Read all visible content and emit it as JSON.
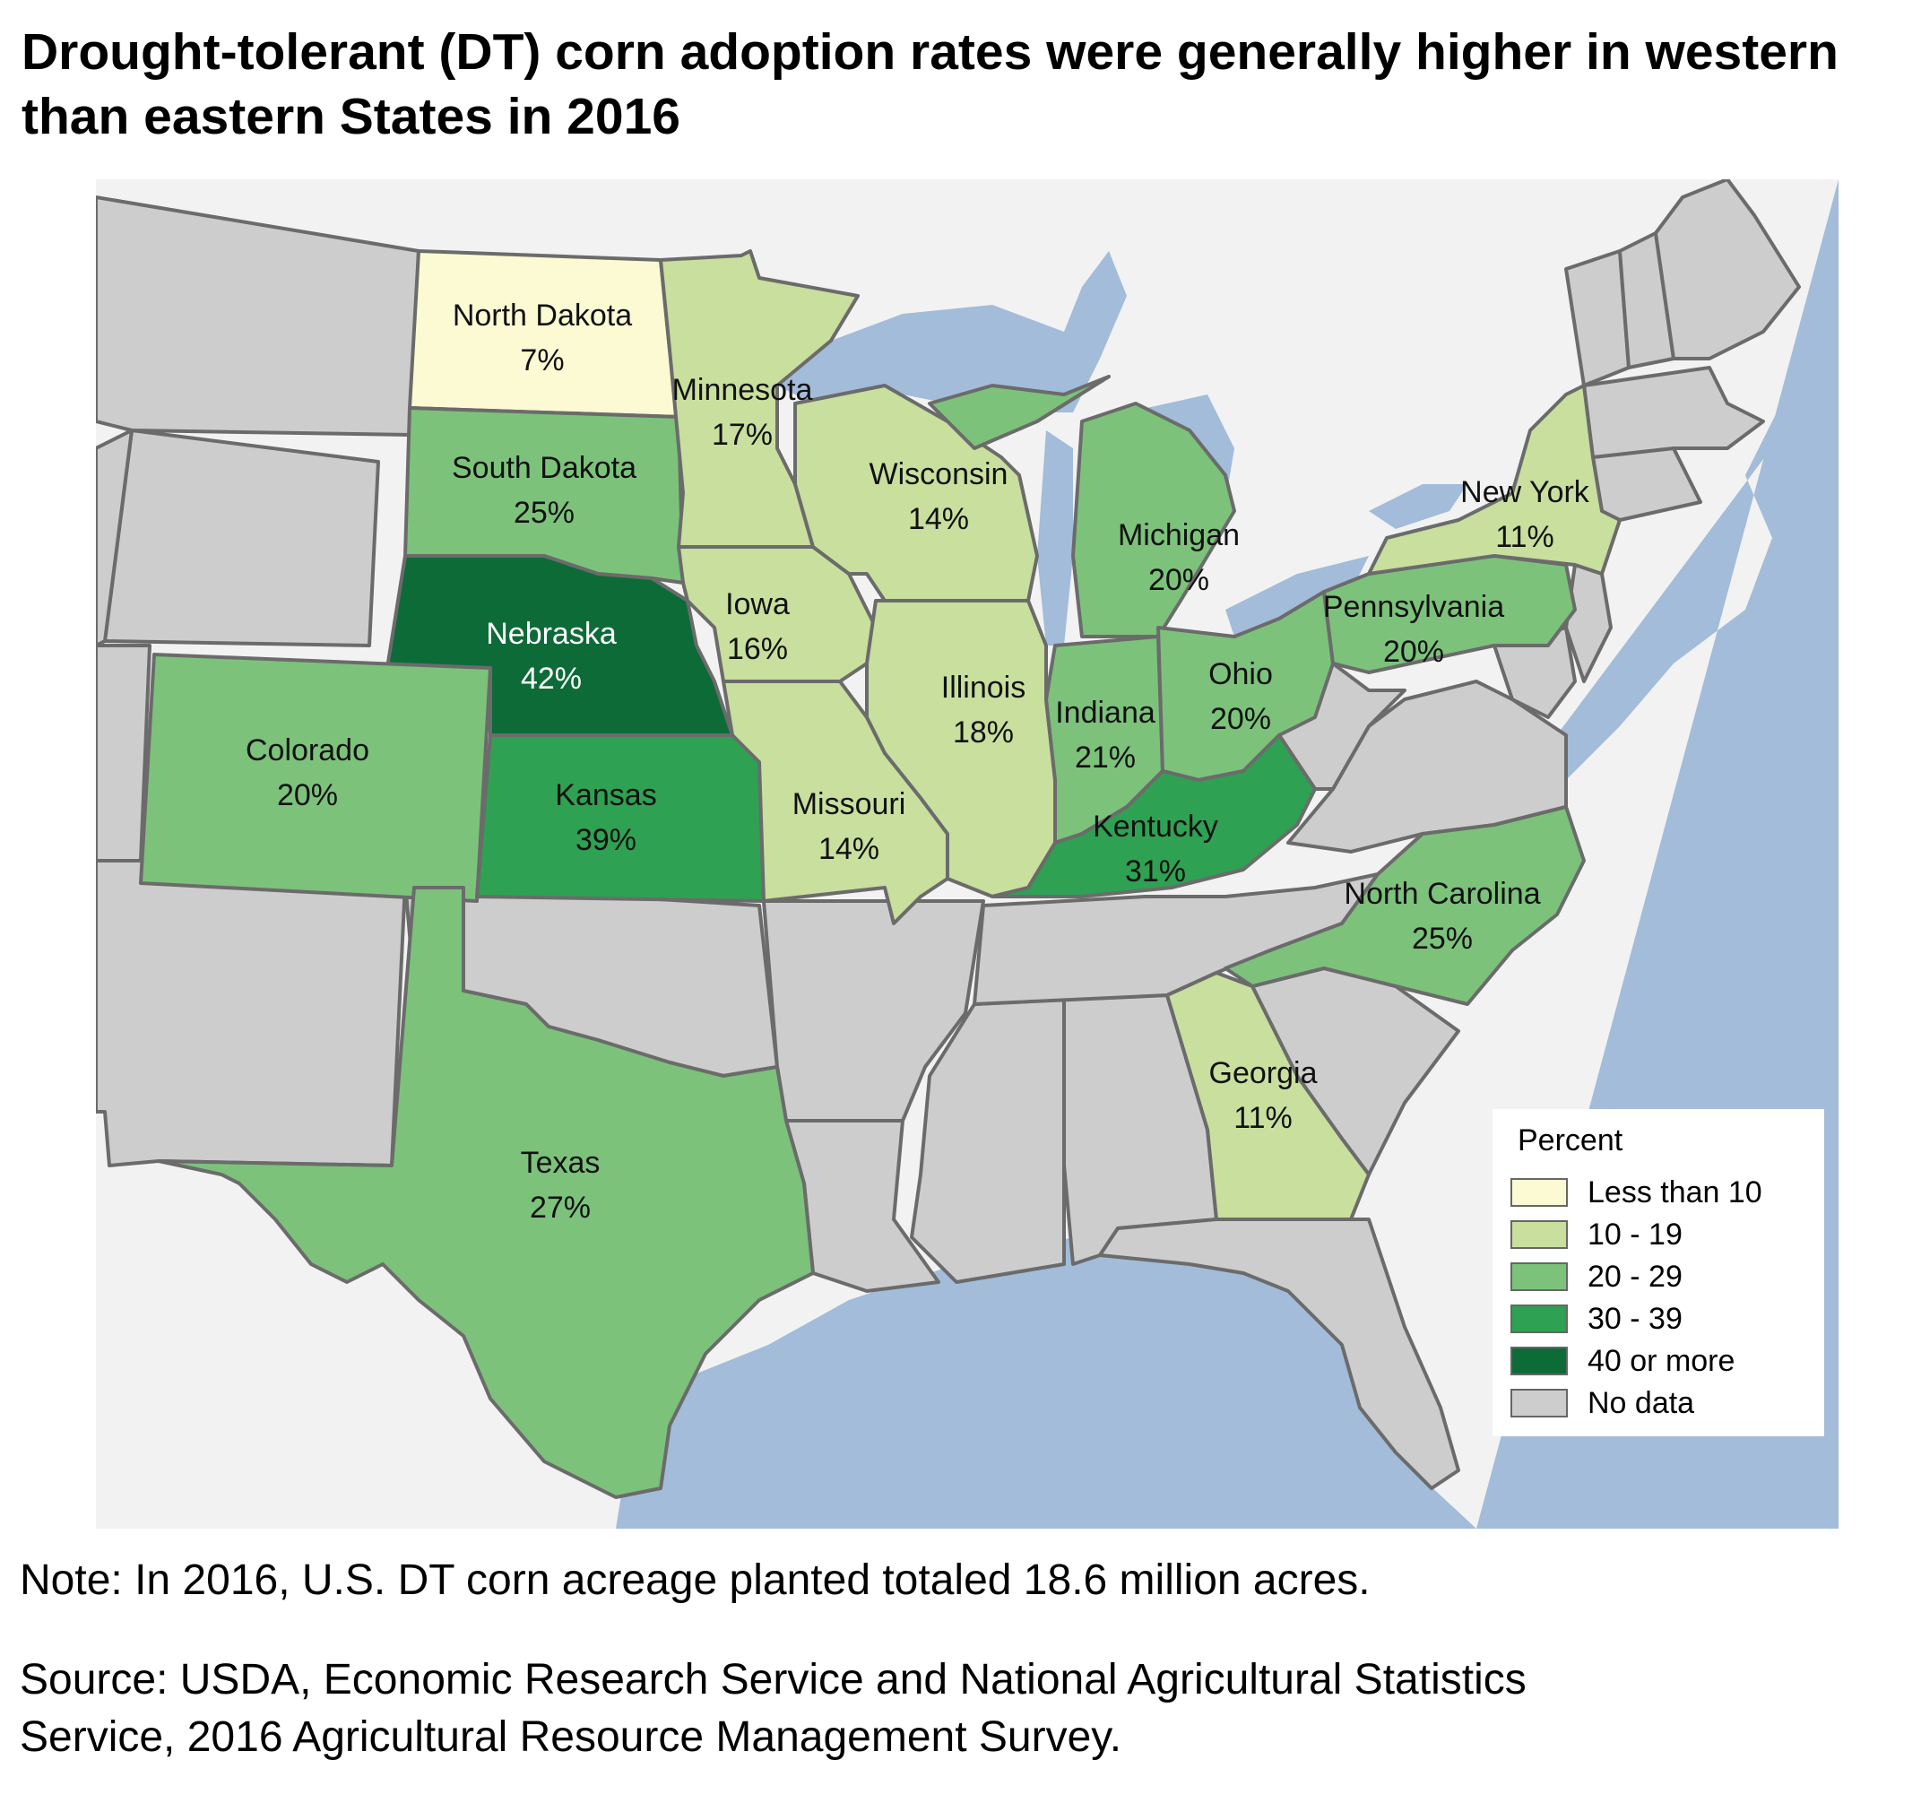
{
  "title": {
    "line1": "Drought-tolerant (DT) corn adoption rates were generally higher in western",
    "line2": "than eastern States in 2016"
  },
  "map_data": {
    "type": "choropleth",
    "region": "Contiguous United States (central and eastern)",
    "states": [
      {
        "name": "North Dakota",
        "label": "7%",
        "value": 7,
        "bin": "Less than 10"
      },
      {
        "name": "South Dakota",
        "label": "25%",
        "value": 25,
        "bin": "20 - 29"
      },
      {
        "name": "Nebraska",
        "label": "42%",
        "value": 42,
        "bin": "40 or more"
      },
      {
        "name": "Kansas",
        "label": "39%",
        "value": 39,
        "bin": "30 - 39"
      },
      {
        "name": "Colorado",
        "label": "20%",
        "value": 20,
        "bin": "20 - 29"
      },
      {
        "name": "Texas",
        "label": "27%",
        "value": 27,
        "bin": "20 - 29"
      },
      {
        "name": "Minnesota",
        "label": "17%",
        "value": 17,
        "bin": "10 - 19"
      },
      {
        "name": "Iowa",
        "label": "16%",
        "value": 16,
        "bin": "10 - 19"
      },
      {
        "name": "Missouri",
        "label": "14%",
        "value": 14,
        "bin": "10 - 19"
      },
      {
        "name": "Wisconsin",
        "label": "14%",
        "value": 14,
        "bin": "10 - 19"
      },
      {
        "name": "Illinois",
        "label": "18%",
        "value": 18,
        "bin": "10 - 19"
      },
      {
        "name": "Indiana",
        "label": "21%",
        "value": 21,
        "bin": "20 - 29"
      },
      {
        "name": "Michigan",
        "label": "20%",
        "value": 20,
        "bin": "20 - 29"
      },
      {
        "name": "Ohio",
        "label": "20%",
        "value": 20,
        "bin": "20 - 29"
      },
      {
        "name": "Kentucky",
        "label": "31%",
        "value": 31,
        "bin": "30 - 39"
      },
      {
        "name": "Pennsylvania",
        "label": "20%",
        "value": 20,
        "bin": "20 - 29"
      },
      {
        "name": "New York",
        "label": "11%",
        "value": 11,
        "bin": "10 - 19"
      },
      {
        "name": "North Carolina",
        "label": "25%",
        "value": 25,
        "bin": "20 - 29"
      },
      {
        "name": "Georgia",
        "label": "11%",
        "value": 11,
        "bin": "10 - 19"
      }
    ],
    "colors": {
      "no_data": "#cdcdcd",
      "land_outside": "#f2f2f2",
      "water": "#a2bcd9",
      "border": "#6b6b6b"
    }
  },
  "legend": {
    "title": "Percent",
    "items": [
      {
        "label": "Less than 10",
        "color": "#fbfad3"
      },
      {
        "label": "10 - 19",
        "color": "#c8df9e"
      },
      {
        "label": "20 - 29",
        "color": "#7cc27b"
      },
      {
        "label": "30 - 39",
        "color": "#2fa152"
      },
      {
        "label": "40 or more",
        "color": "#0d6b38"
      },
      {
        "label": "No data",
        "color": "#cdcdcd"
      }
    ]
  },
  "note": "Note: In 2016, U.S. DT corn acreage planted totaled 18.6 million acres.",
  "source": {
    "line1": "Source: USDA, Economic Research Service and National Agricultural Statistics",
    "line2": "Service, 2016 Agricultural Resource Management Survey."
  }
}
